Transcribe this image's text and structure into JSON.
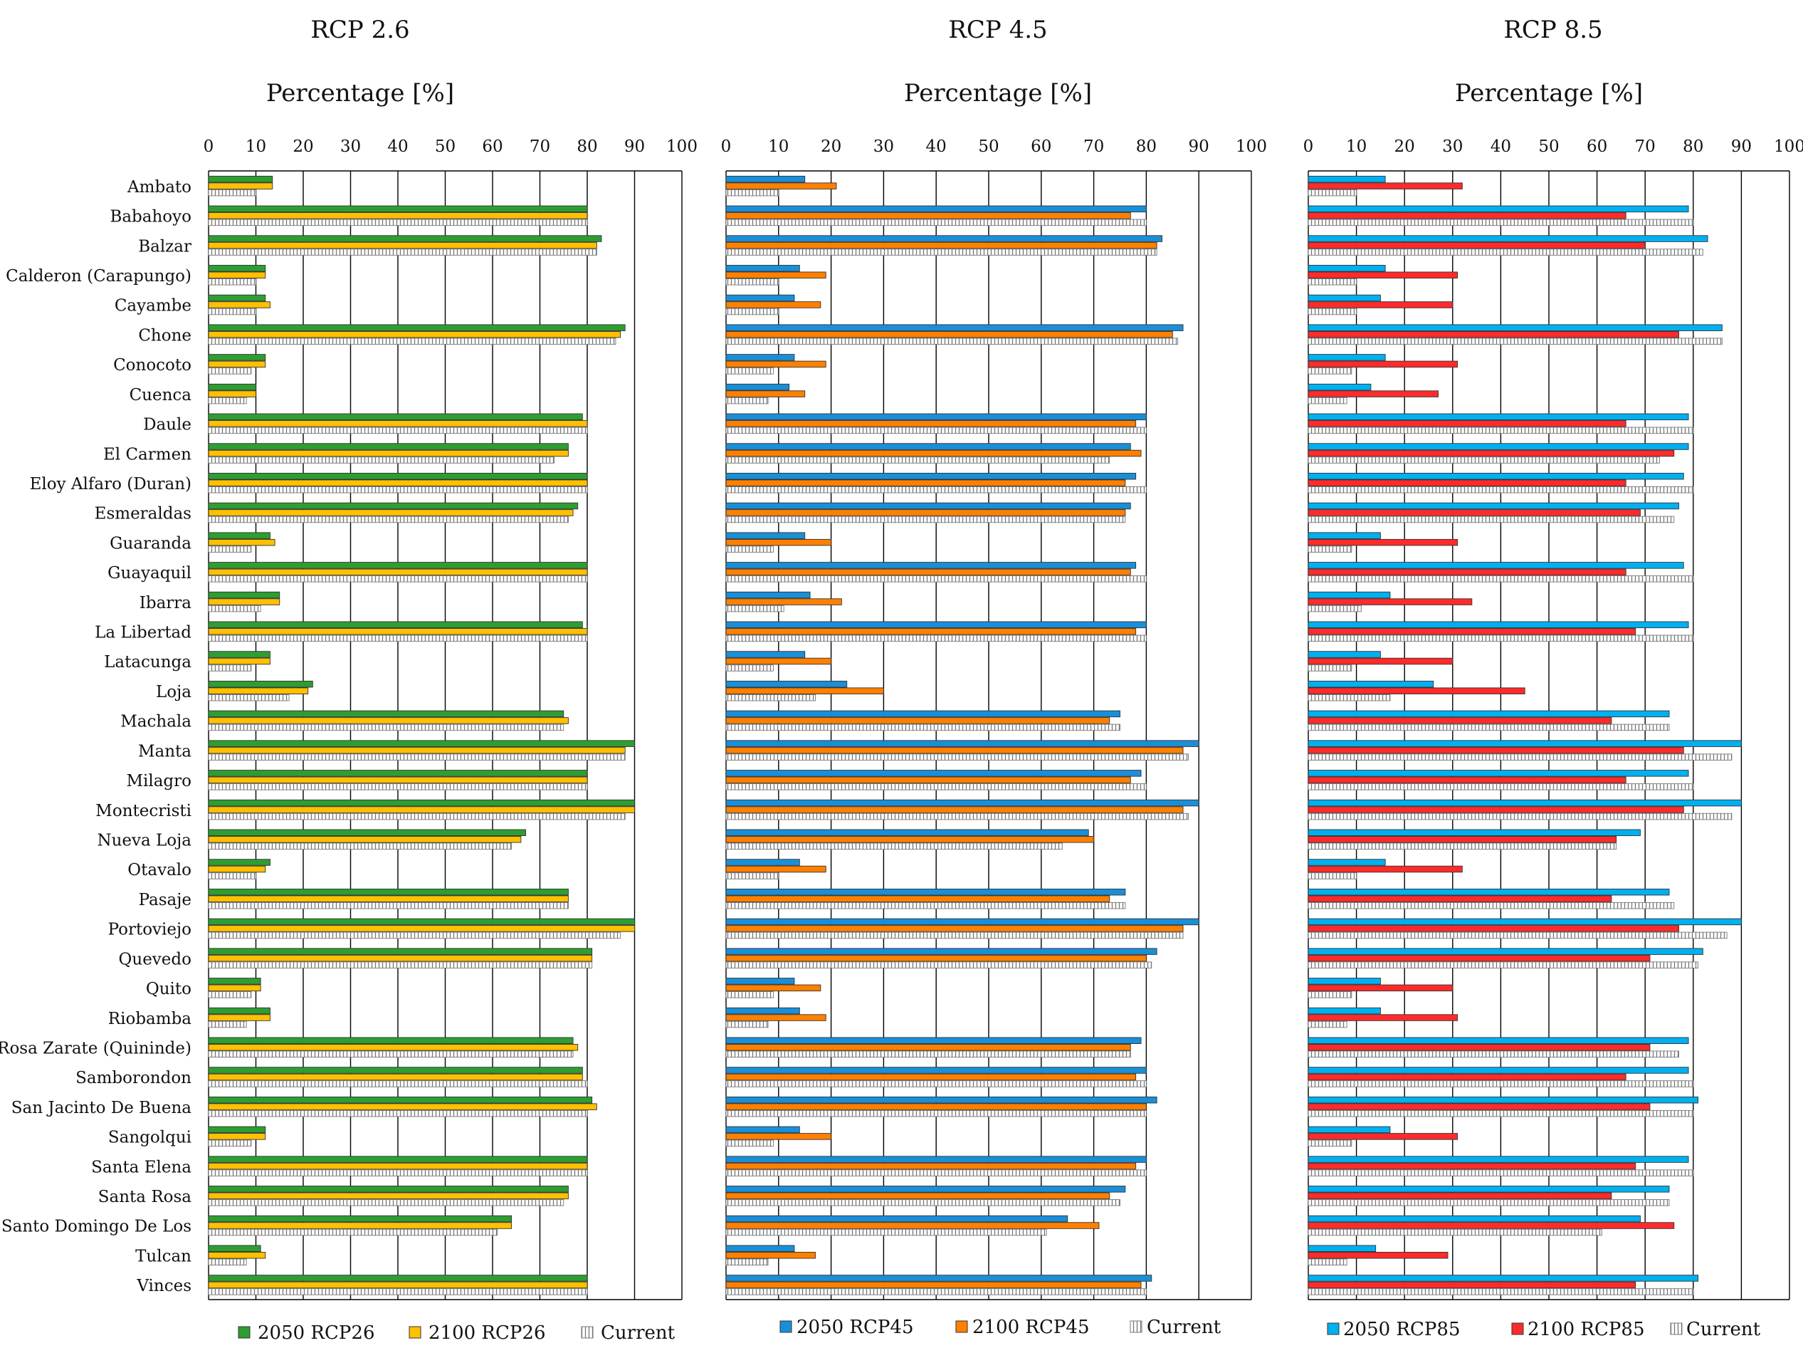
{
  "cities": [
    "Ambato",
    "Babahoyo",
    "Balzar",
    "Calderon (Carapungo)",
    "Cayambe",
    "Chone",
    "Conocoto",
    "Cuenca",
    "Daule",
    "El Carmen",
    "Eloy Alfaro (Duran)",
    "Esmeraldas",
    "Guaranda",
    "Guayaquil",
    "Ibarra",
    "La Libertad",
    "Latacunga",
    "Loja",
    "Machala",
    "Manta",
    "Milagro",
    "Montecristi",
    "Nueva Loja",
    "Otavalo",
    "Pasaje",
    "Portoviejo",
    "Quevedo",
    "Quito",
    "Riobamba",
    "Rosa Zarate (Quininde)",
    "Samborondon",
    "San Jacinto De Buena",
    "Sangolqui",
    "Santa Elena",
    "Santa Rosa",
    "Santo Domingo De Los",
    "Tulcan",
    "Vinces"
  ],
  "axis_label": "Percentage [%]",
  "ticks": [
    "0",
    "10",
    "20",
    "30",
    "40",
    "50",
    "60",
    "70",
    "80",
    "90",
    "100"
  ],
  "chart_data": [
    {
      "type": "bar",
      "orientation": "horizontal",
      "title": "RCP 2.6",
      "xlabel": "Percentage [%]",
      "xlim": [
        0,
        100
      ],
      "legend_position": "bottom",
      "categories": [
        "Ambato",
        "Babahoyo",
        "Balzar",
        "Calderon (Carapungo)",
        "Cayambe",
        "Chone",
        "Conocoto",
        "Cuenca",
        "Daule",
        "El Carmen",
        "Eloy Alfaro (Duran)",
        "Esmeraldas",
        "Guaranda",
        "Guayaquil",
        "Ibarra",
        "La Libertad",
        "Latacunga",
        "Loja",
        "Machala",
        "Manta",
        "Milagro",
        "Montecristi",
        "Nueva Loja",
        "Otavalo",
        "Pasaje",
        "Portoviejo",
        "Quevedo",
        "Quito",
        "Riobamba",
        "Rosa Zarate (Quininde)",
        "Samborondon",
        "San Jacinto De Buena",
        "Sangolqui",
        "Santa Elena",
        "Santa Rosa",
        "Santo Domingo De Los",
        "Tulcan",
        "Vinces"
      ],
      "series": [
        {
          "name": "2050 RCP26",
          "color": "#2e9e32",
          "values": [
            13.5,
            80,
            83,
            12,
            12,
            88,
            12,
            10,
            79,
            76,
            80,
            78,
            13,
            80,
            15,
            79,
            13,
            22,
            75,
            90,
            80,
            90,
            67,
            13,
            76,
            90,
            81,
            11,
            13,
            77,
            79,
            81,
            12,
            80,
            76,
            64,
            11,
            80
          ]
        },
        {
          "name": "2100 RCP26",
          "color": "#ffc000",
          "values": [
            13.5,
            80,
            82,
            12,
            13,
            87,
            12,
            10,
            80,
            76,
            80,
            77,
            14,
            80,
            15,
            80,
            13,
            21,
            76,
            88,
            80,
            90,
            66,
            12,
            76,
            90,
            81,
            11,
            13,
            78,
            79,
            82,
            12,
            80,
            76,
            64,
            12,
            80
          ]
        },
        {
          "name": "Current",
          "color": "#ffffff",
          "values": [
            10,
            80,
            82,
            10,
            10,
            86,
            9,
            8,
            80,
            73,
            80,
            76,
            9,
            80,
            11,
            80,
            9,
            17,
            75,
            88,
            80,
            88,
            64,
            10,
            76,
            87,
            81,
            9,
            8,
            77,
            80,
            80,
            9,
            80,
            75,
            61,
            8,
            80
          ]
        }
      ]
    },
    {
      "type": "bar",
      "orientation": "horizontal",
      "title": "RCP 4.5",
      "xlabel": "Percentage [%]",
      "xlim": [
        0,
        100
      ],
      "legend_position": "bottom",
      "categories": [
        "Ambato",
        "Babahoyo",
        "Balzar",
        "Calderon (Carapungo)",
        "Cayambe",
        "Chone",
        "Conocoto",
        "Cuenca",
        "Daule",
        "El Carmen",
        "Eloy Alfaro (Duran)",
        "Esmeraldas",
        "Guaranda",
        "Guayaquil",
        "Ibarra",
        "La Libertad",
        "Latacunga",
        "Loja",
        "Machala",
        "Manta",
        "Milagro",
        "Montecristi",
        "Nueva Loja",
        "Otavalo",
        "Pasaje",
        "Portoviejo",
        "Quevedo",
        "Quito",
        "Riobamba",
        "Rosa Zarate (Quininde)",
        "Samborondon",
        "San Jacinto De Buena",
        "Sangolqui",
        "Santa Elena",
        "Santa Rosa",
        "Santo Domingo De Los",
        "Tulcan",
        "Vinces"
      ],
      "series": [
        {
          "name": "2050 RCP45",
          "color": "#1a8fd8",
          "values": [
            15,
            80,
            83,
            14,
            13,
            87,
            13,
            12,
            80,
            77,
            78,
            77,
            15,
            78,
            16,
            80,
            15,
            23,
            75,
            90,
            79,
            90,
            69,
            14,
            76,
            90,
            82,
            13,
            14,
            79,
            80,
            82,
            14,
            80,
            76,
            65,
            13,
            81
          ]
        },
        {
          "name": "2100 RCP45",
          "color": "#ff8000",
          "values": [
            21,
            77,
            82,
            19,
            18,
            85,
            19,
            15,
            78,
            79,
            76,
            76,
            20,
            77,
            22,
            78,
            20,
            30,
            73,
            87,
            77,
            87,
            70,
            19,
            73,
            87,
            80,
            18,
            19,
            77,
            78,
            80,
            20,
            78,
            73,
            71,
            17,
            79
          ]
        },
        {
          "name": "Current",
          "color": "#ffffff",
          "values": [
            10,
            80,
            82,
            10,
            10,
            86,
            9,
            8,
            80,
            73,
            80,
            76,
            9,
            80,
            11,
            80,
            9,
            17,
            75,
            88,
            80,
            88,
            64,
            10,
            76,
            87,
            81,
            9,
            8,
            77,
            80,
            80,
            9,
            80,
            75,
            61,
            8,
            80
          ]
        }
      ]
    },
    {
      "type": "bar",
      "orientation": "horizontal",
      "title": "RCP 8.5",
      "xlabel": "Percentage [%]",
      "xlim": [
        0,
        100
      ],
      "legend_position": "bottom",
      "categories": [
        "Ambato",
        "Babahoyo",
        "Balzar",
        "Calderon (Carapungo)",
        "Cayambe",
        "Chone",
        "Conocoto",
        "Cuenca",
        "Daule",
        "El Carmen",
        "Eloy Alfaro (Duran)",
        "Esmeraldas",
        "Guaranda",
        "Guayaquil",
        "Ibarra",
        "La Libertad",
        "Latacunga",
        "Loja",
        "Machala",
        "Manta",
        "Milagro",
        "Montecristi",
        "Nueva Loja",
        "Otavalo",
        "Pasaje",
        "Portoviejo",
        "Quevedo",
        "Quito",
        "Riobamba",
        "Rosa Zarate (Quininde)",
        "Samborondon",
        "San Jacinto De Buena",
        "Sangolqui",
        "Santa Elena",
        "Santa Rosa",
        "Santo Domingo De Los",
        "Tulcan",
        "Vinces"
      ],
      "series": [
        {
          "name": "2050 RCP85",
          "color": "#00b0f0",
          "values": [
            16,
            79,
            83,
            16,
            15,
            86,
            16,
            13,
            79,
            79,
            78,
            77,
            15,
            78,
            17,
            79,
            15,
            26,
            75,
            90,
            79,
            90,
            69,
            16,
            75,
            90,
            82,
            15,
            15,
            79,
            79,
            81,
            17,
            79,
            75,
            69,
            14,
            81
          ]
        },
        {
          "name": "2100 RCP85",
          "color": "#ff2b2b",
          "values": [
            32,
            66,
            70,
            31,
            30,
            77,
            31,
            27,
            66,
            76,
            66,
            69,
            31,
            66,
            34,
            68,
            30,
            45,
            63,
            78,
            66,
            78,
            64,
            32,
            63,
            77,
            71,
            30,
            31,
            71,
            66,
            71,
            31,
            68,
            63,
            76,
            29,
            68
          ]
        },
        {
          "name": "Current",
          "color": "#ffffff",
          "values": [
            10,
            80,
            82,
            10,
            10,
            86,
            9,
            8,
            80,
            73,
            80,
            76,
            9,
            80,
            11,
            80,
            9,
            17,
            75,
            88,
            80,
            88,
            64,
            10,
            76,
            87,
            81,
            9,
            8,
            77,
            80,
            80,
            9,
            80,
            75,
            61,
            8,
            80
          ]
        }
      ]
    }
  ]
}
